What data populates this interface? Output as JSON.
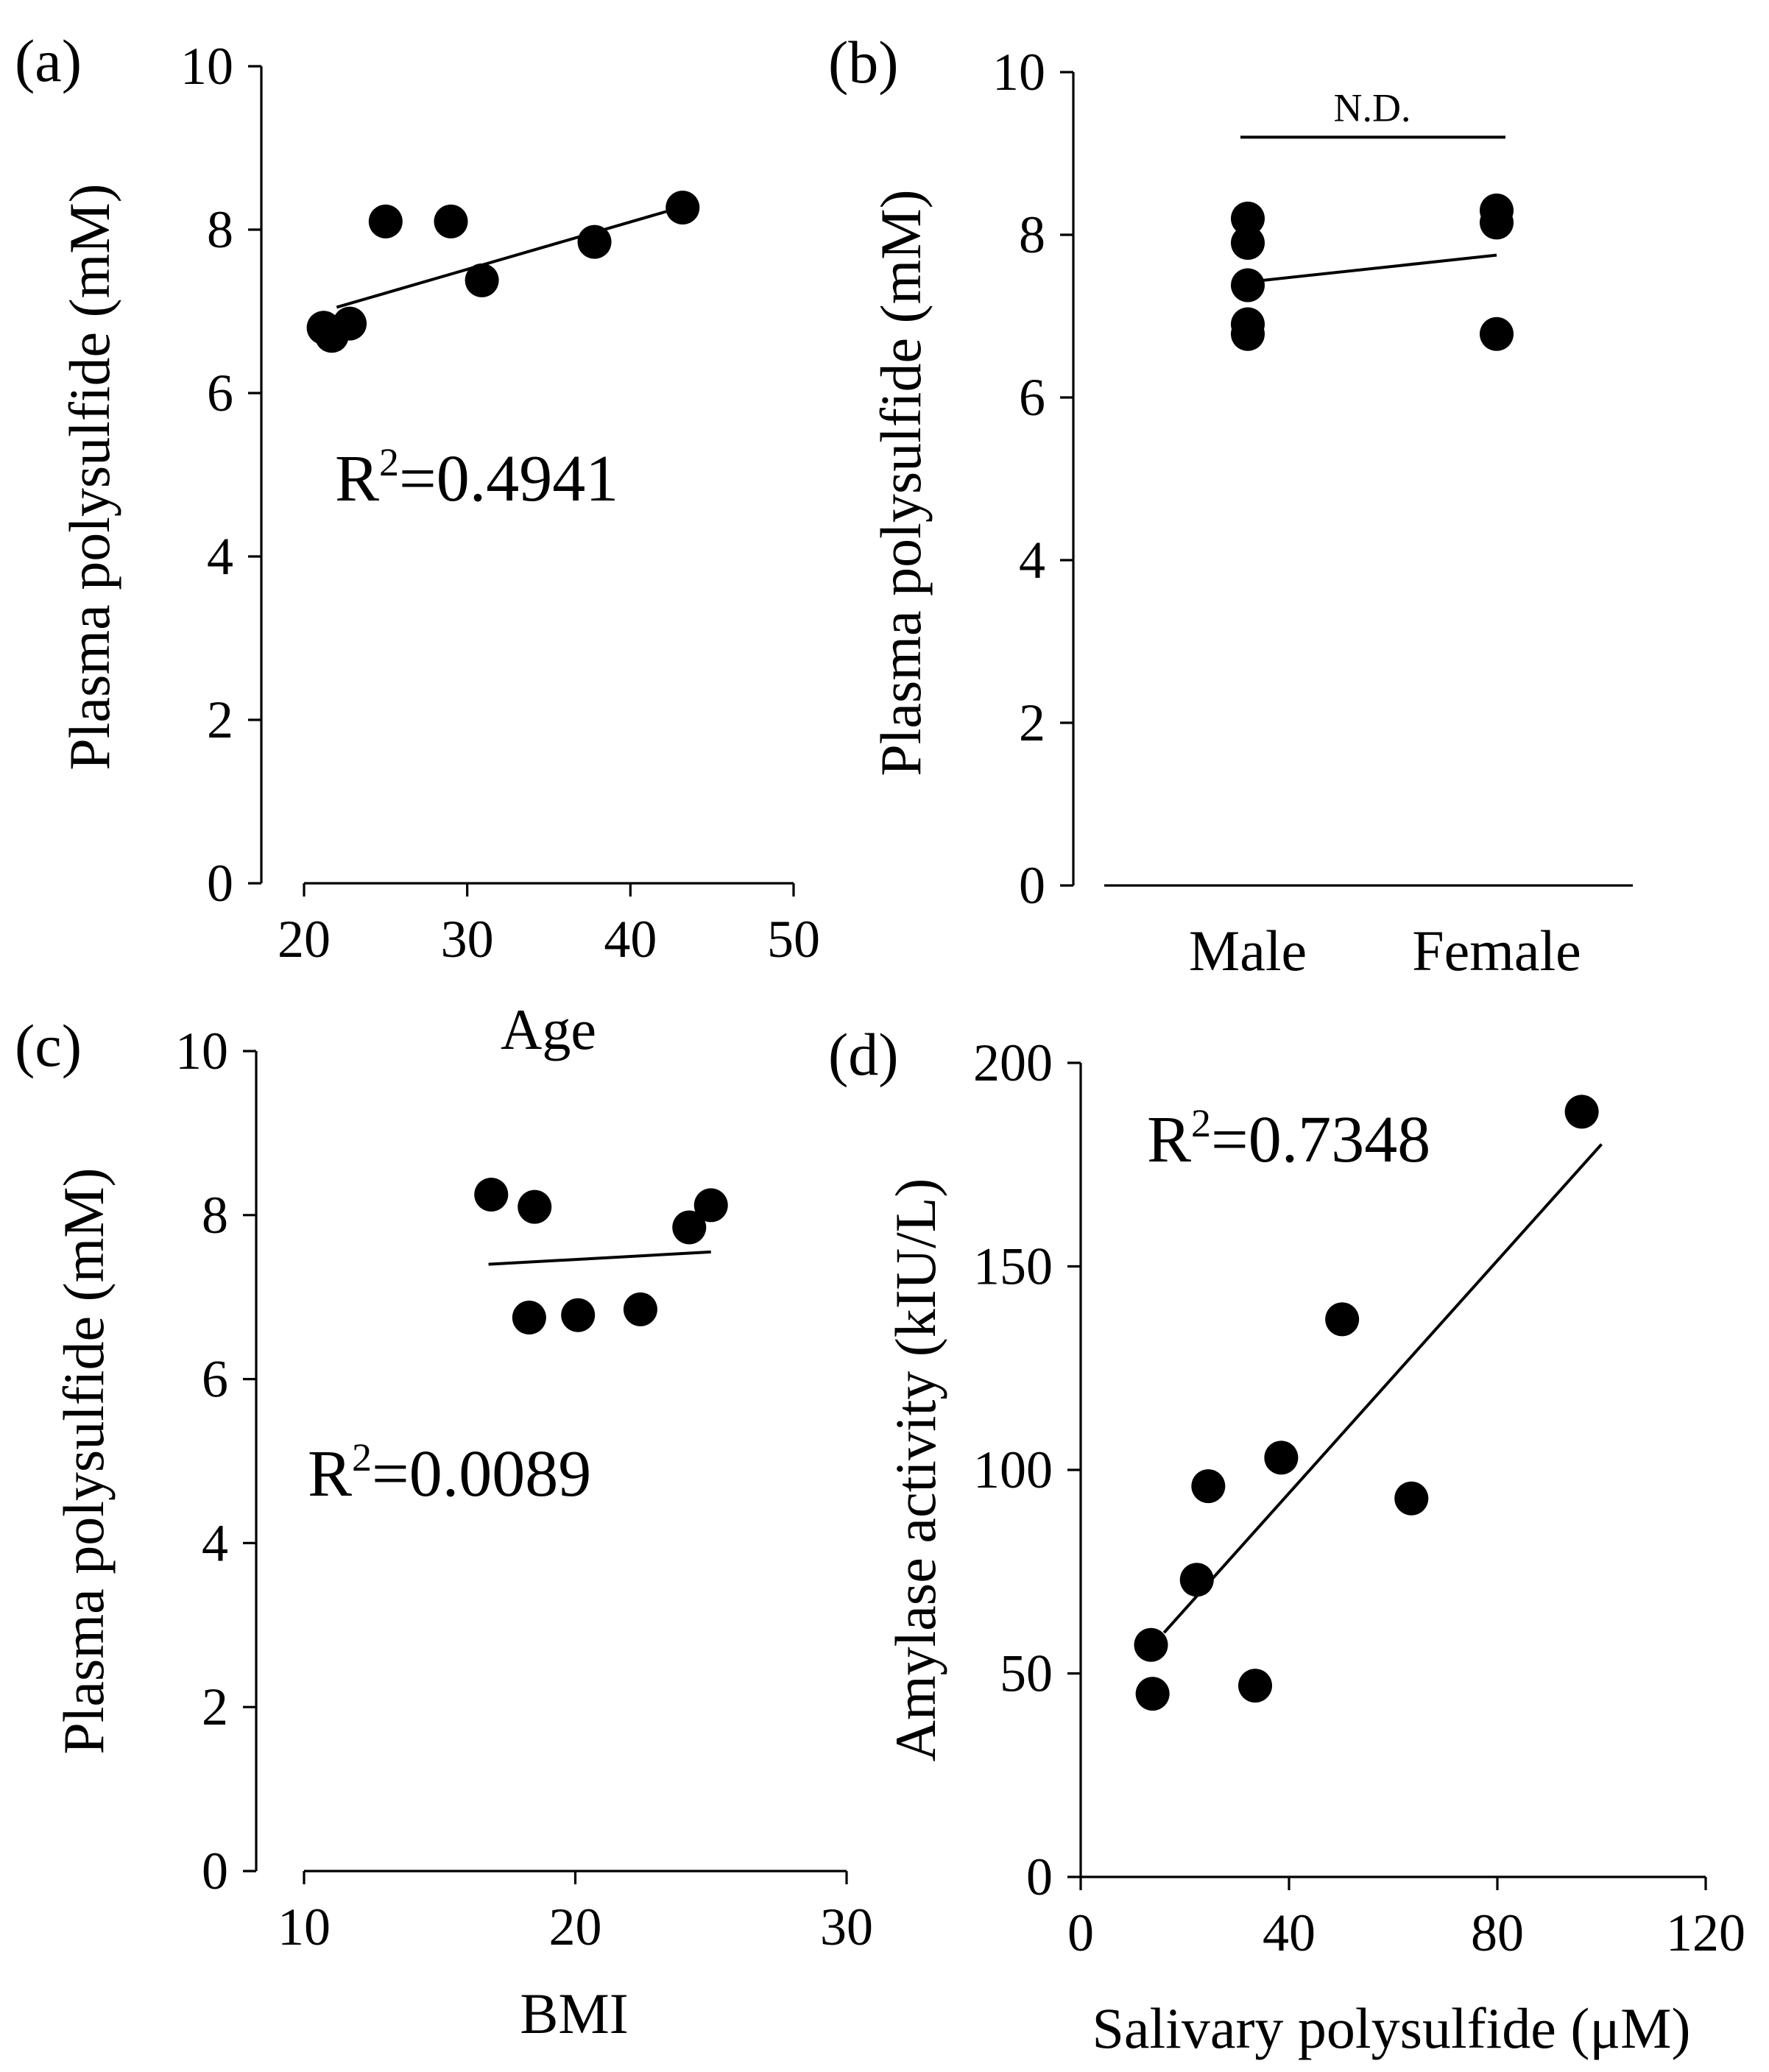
{
  "chart_data": [
    {
      "panel": "(a)",
      "type": "scatter",
      "xlabel": "Age",
      "ylabel": "Plasma polysulfide (mM)",
      "xlim": [
        20,
        50
      ],
      "ylim": [
        0,
        10
      ],
      "xticks": [
        20,
        30,
        40,
        50
      ],
      "yticks": [
        0,
        2,
        4,
        6,
        8,
        10
      ],
      "points": [
        {
          "x": 21.2,
          "y": 6.8
        },
        {
          "x": 21.7,
          "y": 6.7
        },
        {
          "x": 22.8,
          "y": 6.85
        },
        {
          "x": 25.0,
          "y": 8.1
        },
        {
          "x": 29.0,
          "y": 8.1
        },
        {
          "x": 30.9,
          "y": 7.38
        },
        {
          "x": 37.8,
          "y": 7.85
        },
        {
          "x": 43.2,
          "y": 8.27
        }
      ],
      "fit": {
        "x": [
          22.0,
          43.2
        ],
        "y": [
          7.05,
          8.28
        ]
      },
      "annotation": {
        "base": "R",
        "sup": "2",
        "rest": "=0.4941"
      }
    },
    {
      "panel": "(b)",
      "type": "scatter",
      "xlabel": "",
      "ylabel": "Plasma polysulfide (mM)",
      "ylim": [
        0,
        10
      ],
      "yticks": [
        0,
        2,
        4,
        6,
        8,
        10
      ],
      "categories": [
        "Male",
        "Female"
      ],
      "points": [
        {
          "category": "Male",
          "y": 8.2
        },
        {
          "category": "Male",
          "y": 7.9
        },
        {
          "category": "Male",
          "y": 7.38
        },
        {
          "category": "Male",
          "y": 6.9
        },
        {
          "category": "Male",
          "y": 6.78
        },
        {
          "category": "Female",
          "y": 8.3
        },
        {
          "category": "Female",
          "y": 8.15
        },
        {
          "category": "Female",
          "y": 6.78
        }
      ],
      "fit": {
        "category": [
          "Male",
          "Female"
        ],
        "y": [
          7.42,
          7.75
        ]
      },
      "significance": {
        "label": "N.D.",
        "y": 9.2
      }
    },
    {
      "panel": "(c)",
      "type": "scatter",
      "xlabel": "BMI",
      "ylabel": "Plasma polysulfide (mM)",
      "xlim": [
        10,
        30
      ],
      "ylim": [
        0,
        10
      ],
      "xticks": [
        10,
        20,
        30
      ],
      "yticks": [
        0,
        2,
        4,
        6,
        8,
        10
      ],
      "points": [
        {
          "x": 16.9,
          "y": 8.25
        },
        {
          "x": 18.5,
          "y": 8.1
        },
        {
          "x": 18.3,
          "y": 6.75
        },
        {
          "x": 20.1,
          "y": 6.78
        },
        {
          "x": 22.4,
          "y": 6.85
        },
        {
          "x": 24.2,
          "y": 7.85
        },
        {
          "x": 25.0,
          "y": 8.12
        }
      ],
      "fit": {
        "x": [
          16.8,
          25.0
        ],
        "y": [
          7.4,
          7.55
        ]
      },
      "annotation": {
        "base": "R",
        "sup": "2",
        "rest": "=0.0089"
      }
    },
    {
      "panel": "(d)",
      "type": "scatter",
      "xlabel": "Salivary polysulfide (μM)",
      "ylabel": "Amylase activity (kIU/L)",
      "xlim": [
        0,
        120
      ],
      "ylim": [
        0,
        200
      ],
      "xticks": [
        0,
        40,
        80,
        120
      ],
      "yticks": [
        0,
        50,
        100,
        150,
        200
      ],
      "points": [
        {
          "x": 13.5,
          "y": 57
        },
        {
          "x": 13.8,
          "y": 45
        },
        {
          "x": 22.3,
          "y": 73
        },
        {
          "x": 24.5,
          "y": 96
        },
        {
          "x": 33.5,
          "y": 47
        },
        {
          "x": 38.5,
          "y": 103
        },
        {
          "x": 50.2,
          "y": 137
        },
        {
          "x": 63.5,
          "y": 93
        },
        {
          "x": 96.2,
          "y": 188
        }
      ],
      "fit": {
        "x": [
          16.0,
          100.0
        ],
        "y": [
          60.0,
          180.0
        ]
      },
      "annotation": {
        "base": "R",
        "sup": "2",
        "rest": "=0.7348"
      }
    }
  ]
}
